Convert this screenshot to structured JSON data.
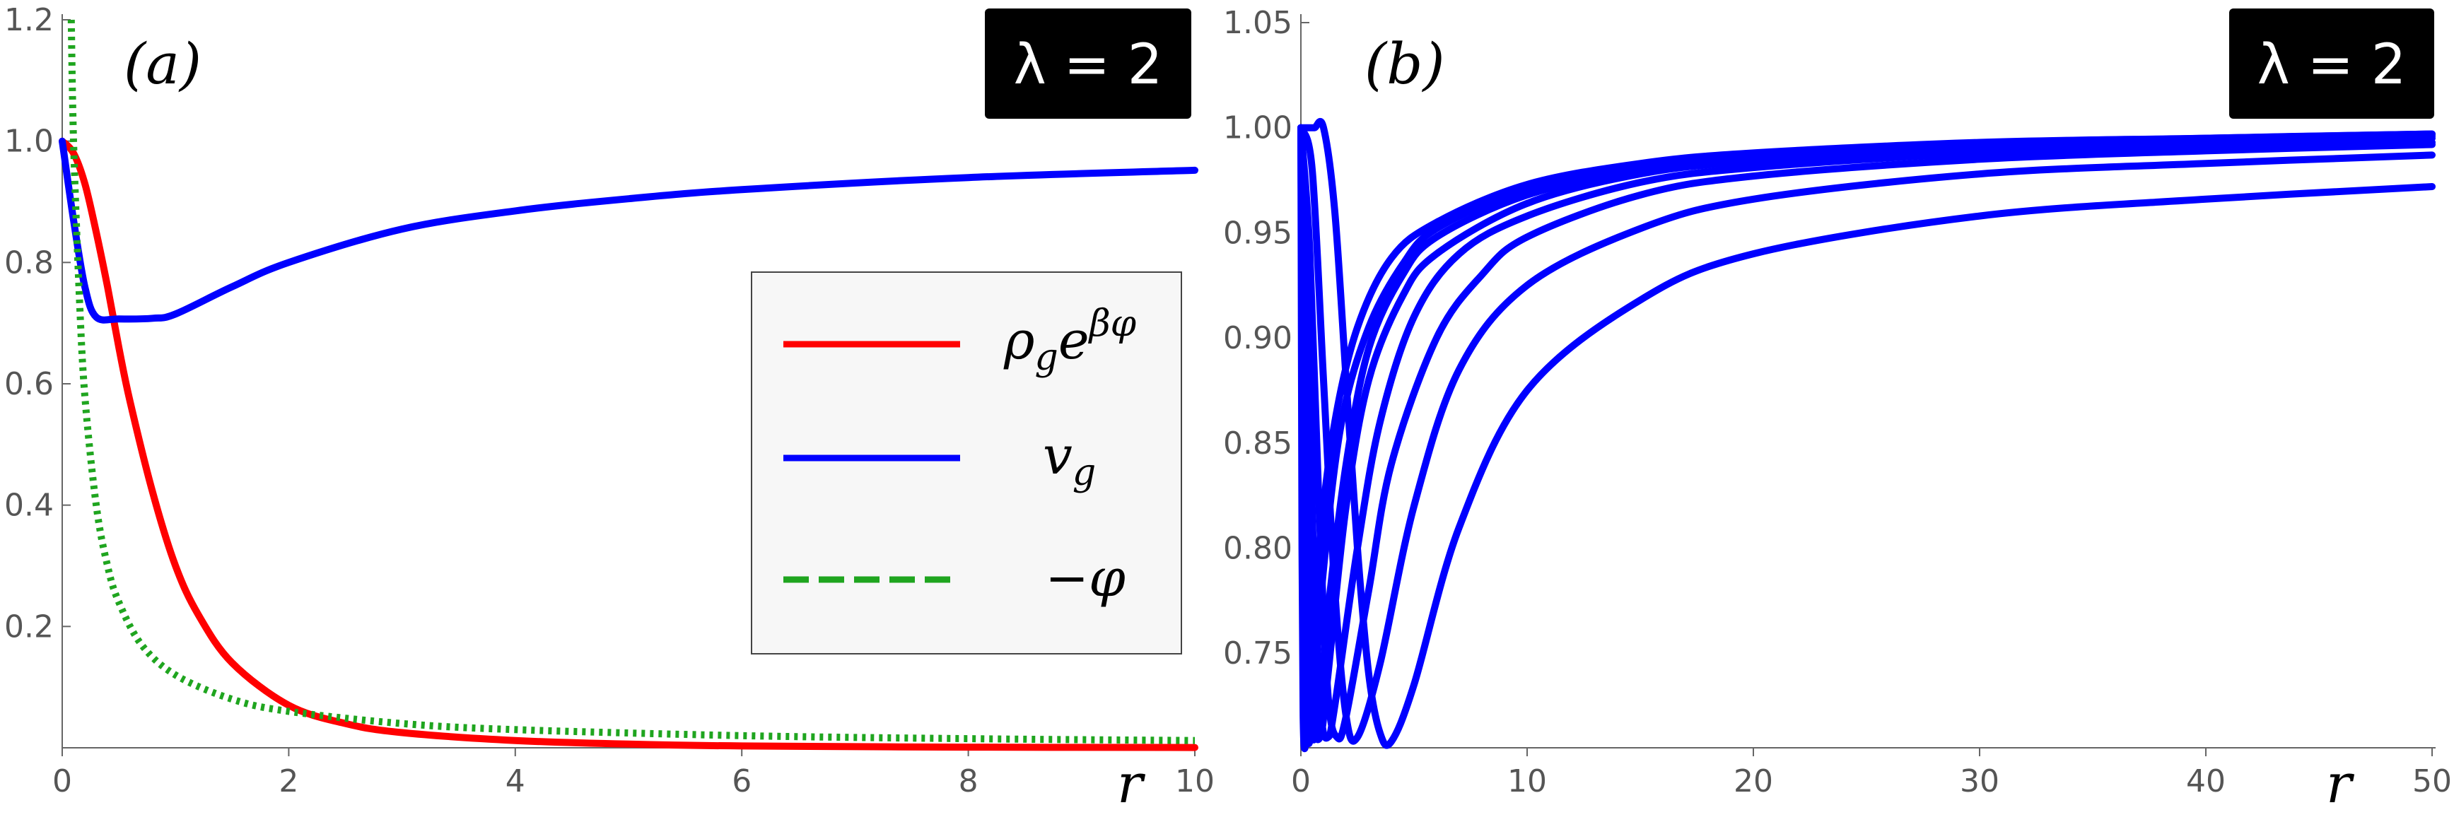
{
  "chart_data": [
    {
      "panel": "(a)",
      "type": "line",
      "badge": "λ = 2",
      "xlabel": "r",
      "xlim": [
        0,
        10
      ],
      "ylim": [
        0,
        1.2
      ],
      "xticks": [
        "0",
        "2",
        "4",
        "6",
        "8",
        "10"
      ],
      "yticks": [
        "0.2",
        "0.4",
        "0.6",
        "0.8",
        "1.0",
        "1.2"
      ],
      "grid": false,
      "legend_position": "center-right",
      "series": [
        {
          "name": "ρ_g e^{βφ}",
          "color": "#ff0000",
          "dash": "solid",
          "x": [
            0,
            0.1,
            0.2,
            0.3,
            0.4,
            0.5,
            0.6,
            0.8,
            1.0,
            1.2,
            1.5,
            2.0,
            2.5,
            3.0,
            4.0,
            5.0,
            6.0,
            8.0,
            10.0
          ],
          "y": [
            1.0,
            0.98,
            0.93,
            0.85,
            0.76,
            0.66,
            0.57,
            0.42,
            0.3,
            0.22,
            0.14,
            0.07,
            0.04,
            0.025,
            0.012,
            0.006,
            0.003,
            0.001,
            0.0005
          ]
        },
        {
          "name": "v_g",
          "color": "#0000ff",
          "dash": "solid",
          "x": [
            0,
            0.1,
            0.2,
            0.3,
            0.5,
            0.8,
            1.0,
            1.5,
            2.0,
            3.0,
            4.0,
            5.0,
            6.0,
            8.0,
            10.0
          ],
          "y": [
            1.0,
            0.87,
            0.76,
            0.71,
            0.707,
            0.708,
            0.715,
            0.76,
            0.8,
            0.855,
            0.885,
            0.905,
            0.92,
            0.94,
            0.952
          ]
        },
        {
          "name": "−φ",
          "color": "#1fa51f",
          "dash": "dotted",
          "x": [
            0.08,
            0.1,
            0.15,
            0.2,
            0.3,
            0.4,
            0.5,
            0.7,
            1.0,
            1.5,
            2.0,
            3.0,
            4.0,
            6.0,
            8.0,
            10.0
          ],
          "y": [
            1.2,
            1.0,
            0.75,
            0.58,
            0.4,
            0.3,
            0.24,
            0.17,
            0.12,
            0.08,
            0.06,
            0.04,
            0.03,
            0.02,
            0.015,
            0.012
          ]
        }
      ]
    },
    {
      "panel": "(b)",
      "type": "line",
      "badge": "λ = 2",
      "xlabel": "r",
      "xlim": [
        0,
        50
      ],
      "ylim": [
        0.705,
        1.05
      ],
      "xticks": [
        "0",
        "10",
        "20",
        "30",
        "40",
        "50"
      ],
      "yticks": [
        "0.75",
        "0.80",
        "0.85",
        "0.90",
        "0.95",
        "1.00",
        "1.05"
      ],
      "grid": false,
      "series_color": "#0000ff",
      "series": [
        {
          "x": [
            0,
            0.3,
            0.6,
            1.0,
            1.5,
            2.0,
            2.5,
            3.0,
            3.5,
            4.0,
            5.0,
            7.0,
            10.0,
            15.0,
            20.0,
            30.0,
            40.0,
            50.0
          ],
          "y": [
            1.0,
            1.0,
            1.0,
            1.0,
            0.96,
            0.88,
            0.8,
            0.74,
            0.712,
            0.708,
            0.735,
            0.81,
            0.875,
            0.918,
            0.94,
            0.958,
            0.966,
            0.972
          ]
        },
        {
          "x": [
            0,
            0.5,
            1.0,
            1.5,
            2.0,
            2.5,
            3.5,
            5.0,
            7.0,
            10.0,
            15.0,
            20.0,
            30.0,
            40.0,
            50.0
          ],
          "y": [
            1.0,
            0.98,
            0.88,
            0.78,
            0.72,
            0.71,
            0.745,
            0.82,
            0.885,
            0.925,
            0.952,
            0.966,
            0.978,
            0.983,
            0.987
          ]
        },
        {
          "x": [
            0,
            0.4,
            0.8,
            1.2,
            1.6,
            2.0,
            3.0,
            4.0,
            6.0,
            8.0,
            10.0,
            15.0,
            20.0,
            30.0,
            40.0,
            50.0
          ],
          "y": [
            1.0,
            0.94,
            0.82,
            0.73,
            0.71,
            0.72,
            0.78,
            0.84,
            0.9,
            0.93,
            0.948,
            0.968,
            0.977,
            0.985,
            0.989,
            0.992
          ]
        },
        {
          "x": [
            0,
            0.3,
            0.6,
            0.9,
            1.2,
            1.5,
            2.5,
            3.5,
            5.0,
            7.0,
            10.0,
            15.0,
            20.0,
            30.0,
            40.0,
            50.0
          ],
          "y": [
            1.0,
            0.9,
            0.78,
            0.72,
            0.71,
            0.725,
            0.8,
            0.86,
            0.91,
            0.94,
            0.958,
            0.974,
            0.981,
            0.988,
            0.991,
            0.993
          ]
        },
        {
          "x": [
            0,
            0.2,
            0.4,
            0.6,
            0.9,
            1.2,
            2.0,
            3.0,
            4.5,
            6.0,
            10.0,
            15.0,
            20.0,
            30.0,
            40.0,
            50.0
          ],
          "y": [
            1.0,
            0.88,
            0.76,
            0.715,
            0.712,
            0.74,
            0.82,
            0.88,
            0.92,
            0.94,
            0.964,
            0.978,
            0.984,
            0.99,
            0.993,
            0.995
          ]
        },
        {
          "x": [
            0,
            0.15,
            0.3,
            0.5,
            0.8,
            1.2,
            2.0,
            3.0,
            4.5,
            6.0,
            10.0,
            15.0,
            20.0,
            30.0,
            40.0,
            50.0
          ],
          "y": [
            1.0,
            0.85,
            0.74,
            0.71,
            0.72,
            0.77,
            0.84,
            0.895,
            0.93,
            0.948,
            0.968,
            0.98,
            0.986,
            0.991,
            0.994,
            0.996
          ]
        },
        {
          "x": [
            0,
            0.1,
            0.2,
            0.35,
            0.6,
            1.0,
            1.8,
            3.0,
            4.5,
            6.0,
            10.0,
            15.0,
            20.0,
            30.0,
            40.0,
            50.0
          ],
          "y": [
            1.0,
            0.82,
            0.73,
            0.707,
            0.73,
            0.79,
            0.86,
            0.905,
            0.935,
            0.952,
            0.971,
            0.982,
            0.987,
            0.992,
            0.995,
            0.997
          ]
        },
        {
          "x": [
            0,
            0.05,
            0.1,
            0.2,
            0.4,
            0.8,
            1.5,
            2.5,
            4.0,
            6.0,
            10.0,
            15.0,
            20.0,
            30.0,
            40.0,
            50.0
          ],
          "y": [
            1.0,
            0.8,
            0.72,
            0.706,
            0.74,
            0.8,
            0.86,
            0.905,
            0.938,
            0.955,
            0.973,
            0.983,
            0.988,
            0.993,
            0.995,
            0.997
          ]
        }
      ]
    }
  ]
}
